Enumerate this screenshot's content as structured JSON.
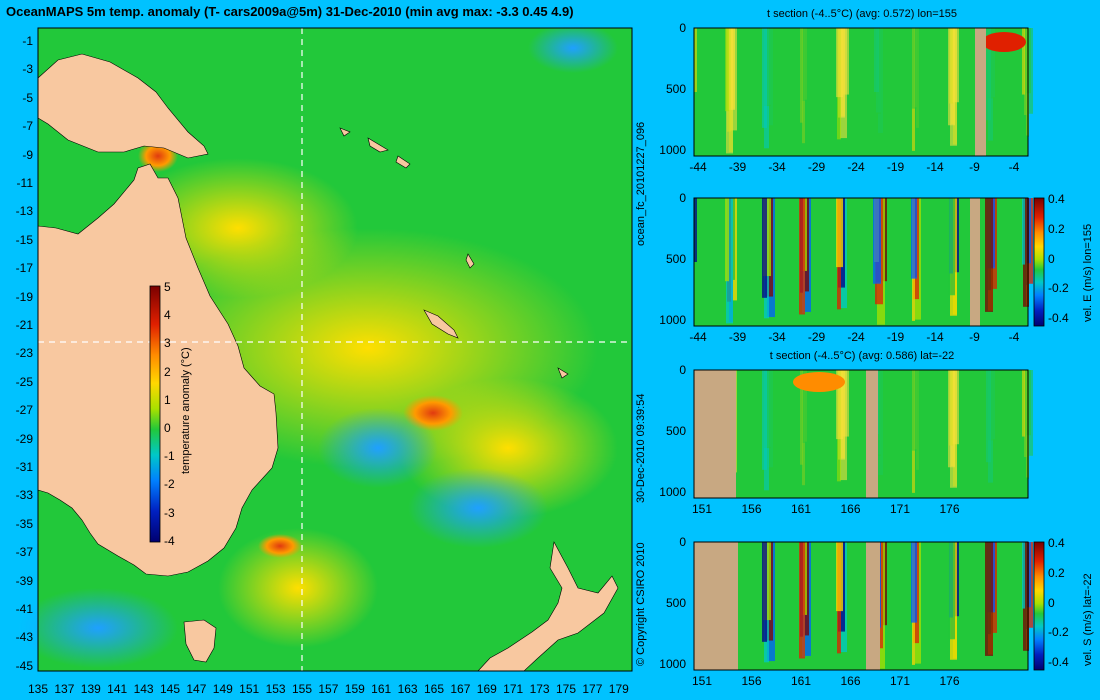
{
  "header": {
    "title": "OceanMAPS 5m temp. anomaly (T- cars2009a@5m) 31-Dec-2010 (min avg max: -3.3 0.45 4.9)"
  },
  "map": {
    "lon_ticks": [
      "135",
      "137",
      "139",
      "141",
      "143",
      "145",
      "147",
      "149",
      "151",
      "153",
      "155",
      "157",
      "159",
      "161",
      "163",
      "165",
      "167",
      "169",
      "171",
      "173",
      "175",
      "177",
      "179"
    ],
    "lat_ticks": [
      "-1",
      "-3",
      "-5",
      "-7",
      "-9",
      "-11",
      "-13",
      "-15",
      "-17",
      "-19",
      "-21",
      "-23",
      "-25",
      "-27",
      "-29",
      "-31",
      "-33",
      "-35",
      "-37",
      "-39",
      "-41",
      "-43",
      "-45"
    ],
    "colorbar": {
      "label": "temperature anomaly (°C)",
      "ticks": [
        "5",
        "4",
        "3",
        "2",
        "1",
        "0",
        "-1",
        "-2",
        "-3",
        "-4"
      ]
    },
    "crosshair": {
      "lon": 155,
      "lat": -22
    },
    "colors": {
      "ocean": "#22c83a",
      "land": "#f8c8a0"
    }
  },
  "panels": [
    {
      "title": "t section (-4..5°C) (avg: 0.572) lon=155",
      "x_ticks": [
        "-44",
        "-39",
        "-34",
        "-29",
        "-24",
        "-19",
        "-14",
        "-9",
        "-4"
      ],
      "y_ticks": [
        "0",
        "500",
        "1000"
      ],
      "side_label": "ocean_fc_20101227_096"
    },
    {
      "title": "",
      "x_ticks": [
        "-44",
        "-39",
        "-34",
        "-29",
        "-24",
        "-19",
        "-14",
        "-9",
        "-4"
      ],
      "y_ticks": [
        "0",
        "500",
        "1000"
      ],
      "colorbar_label": "vel. E (m/s) lon=155",
      "colorbar_ticks": [
        "0.4",
        "0.2",
        "0",
        "-0.2",
        "-0.4"
      ]
    },
    {
      "title": "t section (-4..5°C) (avg: 0.586) lat=-22",
      "x_ticks": [
        "151",
        "156",
        "161",
        "166",
        "171",
        "176"
      ],
      "y_ticks": [
        "0",
        "500",
        "1000"
      ],
      "side_label": "30-Dec-2010 09:39:54"
    },
    {
      "title": "",
      "x_ticks": [
        "151",
        "156",
        "161",
        "166",
        "171",
        "176"
      ],
      "y_ticks": [
        "0",
        "500",
        "1000"
      ],
      "colorbar_label": "vel. S (m/s) lat=-22",
      "colorbar_ticks": [
        "0.4",
        "0.2",
        "0",
        "-0.2",
        "-0.4"
      ],
      "side_label": "© Copyright CSIRO 2010"
    }
  ]
}
